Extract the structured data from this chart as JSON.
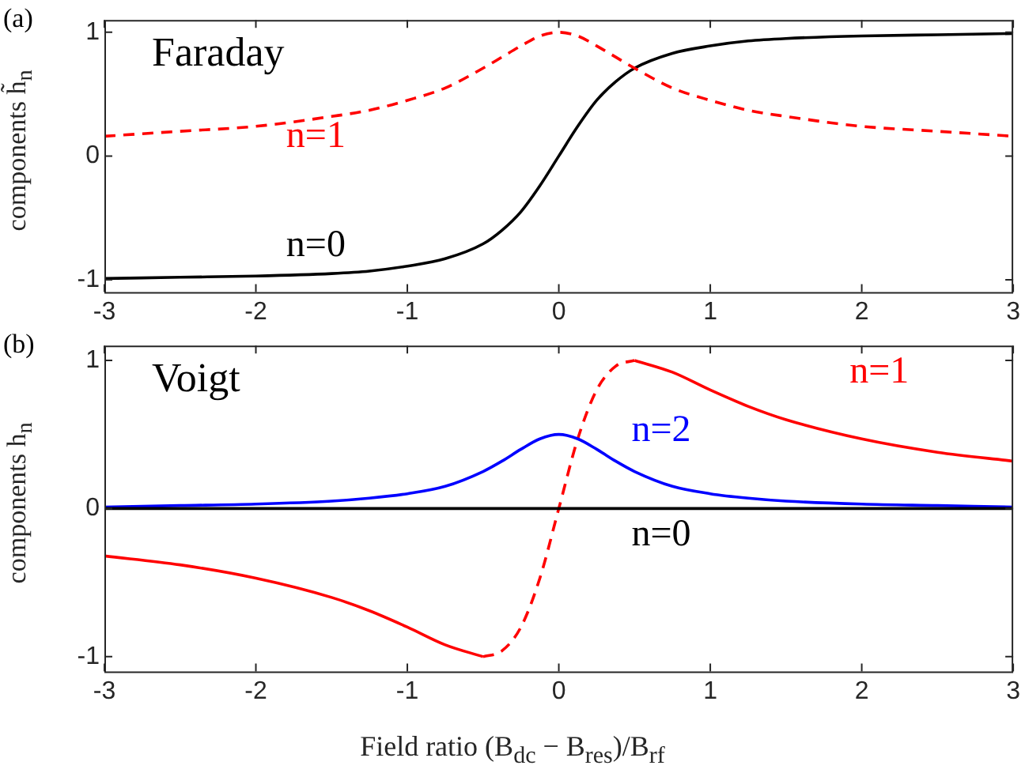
{
  "chart_data": [
    {
      "type": "line",
      "title": "Faraday",
      "ylabel": "components h̃$_{n}$",
      "annotations": [
        "(a)"
      ],
      "marker": "none",
      "grid": false,
      "x": [
        -3,
        -2.5,
        -2,
        -1.5,
        -1.25,
        -1,
        -0.75,
        -0.5,
        -0.375,
        -0.25,
        -0.125,
        0,
        0.125,
        0.25,
        0.375,
        0.5,
        0.75,
        1,
        1.25,
        1.5,
        2,
        2.5,
        3
      ],
      "xlim": [
        -3,
        3
      ],
      "xticks": [
        -3,
        -2,
        -1,
        0,
        1,
        2,
        3
      ],
      "ylim": [
        -1.1,
        1.1
      ],
      "yticks": [
        -1,
        0,
        1
      ],
      "series": [
        {
          "name": "n=1",
          "color": "#ff0000",
          "line_style": "dashed",
          "values": [
            0.16,
            0.2,
            0.24,
            0.32,
            0.37,
            0.45,
            0.55,
            0.71,
            0.8,
            0.89,
            0.97,
            1,
            0.97,
            0.89,
            0.8,
            0.71,
            0.55,
            0.45,
            0.37,
            0.32,
            0.24,
            0.2,
            0.16
          ]
        },
        {
          "name": "n=0",
          "color": "#000000",
          "line_style": "solid",
          "values": [
            -0.99,
            -0.98,
            -0.97,
            -0.95,
            -0.93,
            -0.89,
            -0.83,
            -0.71,
            -0.6,
            -0.45,
            -0.24,
            0,
            0.24,
            0.45,
            0.6,
            0.71,
            0.83,
            0.89,
            0.93,
            0.95,
            0.97,
            0.98,
            0.99
          ]
        }
      ]
    },
    {
      "type": "line",
      "title": "Voigt",
      "ylabel": "components h$_{n}$",
      "xlabel": "Field ratio (B$_{dc}$ − B$_{res}$)/B$_{rf}$",
      "annotations": [
        "(b)"
      ],
      "marker": "none",
      "grid": false,
      "x": [
        -3,
        -2.5,
        -2,
        -1.5,
        -1.25,
        -1,
        -0.75,
        -0.5,
        -0.375,
        -0.25,
        -0.125,
        0,
        0.125,
        0.25,
        0.375,
        0.5,
        0.75,
        1,
        1.25,
        1.5,
        2,
        2.5,
        3
      ],
      "xlim": [
        -3,
        3
      ],
      "xticks": [
        -3,
        -2,
        -1,
        0,
        1,
        2,
        3
      ],
      "ylim": [
        -1.1,
        1.1
      ],
      "yticks": [
        -1,
        0,
        1
      ],
      "series": [
        {
          "name": "n=0",
          "color": "#000000",
          "line_style": "solid",
          "values": [
            0,
            0,
            0,
            0,
            0,
            0,
            0,
            0,
            0,
            0,
            0,
            0,
            0,
            0,
            0,
            0,
            0,
            0,
            0,
            0,
            0,
            0,
            0
          ]
        },
        {
          "name": "n=2",
          "color": "#0000ff",
          "line_style": "solid",
          "values": [
            0.01,
            0.02,
            0.03,
            0.05,
            0.07,
            0.1,
            0.15,
            0.25,
            0.32,
            0.4,
            0.47,
            0.5,
            0.47,
            0.4,
            0.32,
            0.25,
            0.15,
            0.1,
            0.07,
            0.05,
            0.03,
            0.02,
            0.01
          ]
        },
        {
          "name": "n=1",
          "color": "#ff0000",
          "line_style": "solid",
          "values": [
            -0.32,
            -0.38,
            -0.47,
            -0.6,
            -0.69,
            -0.8,
            -0.92,
            -1,
            null,
            null,
            null,
            null,
            null,
            null,
            null,
            1,
            0.92,
            0.8,
            0.69,
            0.6,
            0.47,
            0.38,
            0.32
          ]
        },
        {
          "color": "#ff0000",
          "line_style": "dashed",
          "values": [
            null,
            null,
            null,
            null,
            null,
            null,
            null,
            -1,
            -0.96,
            -0.8,
            -0.47,
            0,
            0.47,
            0.8,
            0.96,
            1,
            null,
            null,
            null,
            null,
            null,
            null,
            null
          ]
        }
      ]
    }
  ]
}
